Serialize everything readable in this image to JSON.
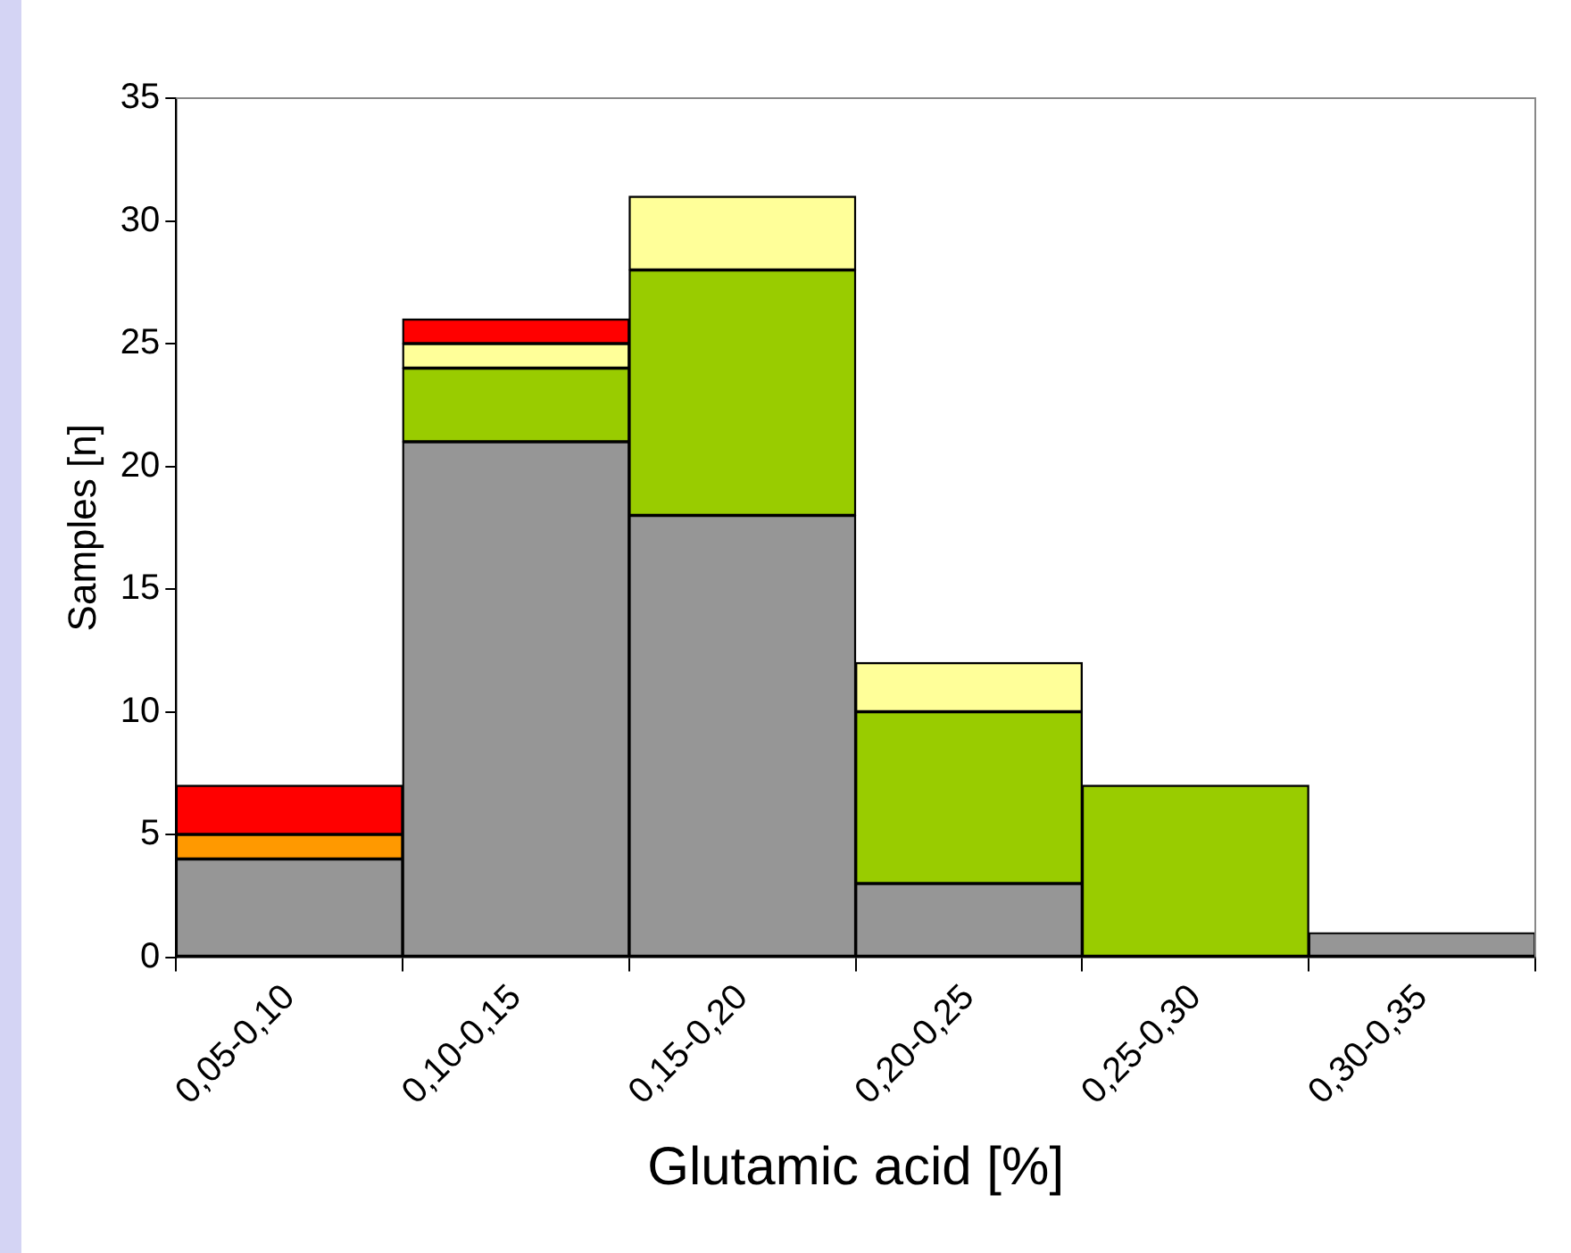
{
  "chart_data": {
    "type": "bar",
    "stacked": true,
    "xlabel": "Glutamic acid [%]",
    "ylabel": "Samples [n]",
    "categories": [
      "0,05-0,10",
      "0,10-0,15",
      "0,15-0,20",
      "0,20-0,25",
      "0,25-0,30",
      "0,30-0,35"
    ],
    "series": [
      {
        "color": "#969696",
        "values": [
          4,
          21,
          18,
          3,
          null,
          1
        ]
      },
      {
        "color": "#ff9900",
        "values": [
          1,
          null,
          null,
          null,
          null,
          null
        ]
      },
      {
        "color": "#99cc00",
        "values": [
          null,
          3,
          10,
          7,
          7,
          null
        ]
      },
      {
        "color": "#ffff99",
        "values": [
          null,
          1,
          3,
          2,
          null,
          null
        ]
      },
      {
        "color": "#ff0000",
        "values": [
          2,
          1,
          null,
          null,
          null,
          null
        ]
      }
    ],
    "ylim": [
      0,
      35
    ],
    "yticks": [
      0,
      5,
      10,
      15,
      20,
      25,
      30,
      35
    ],
    "grid": false,
    "legend": false
  }
}
